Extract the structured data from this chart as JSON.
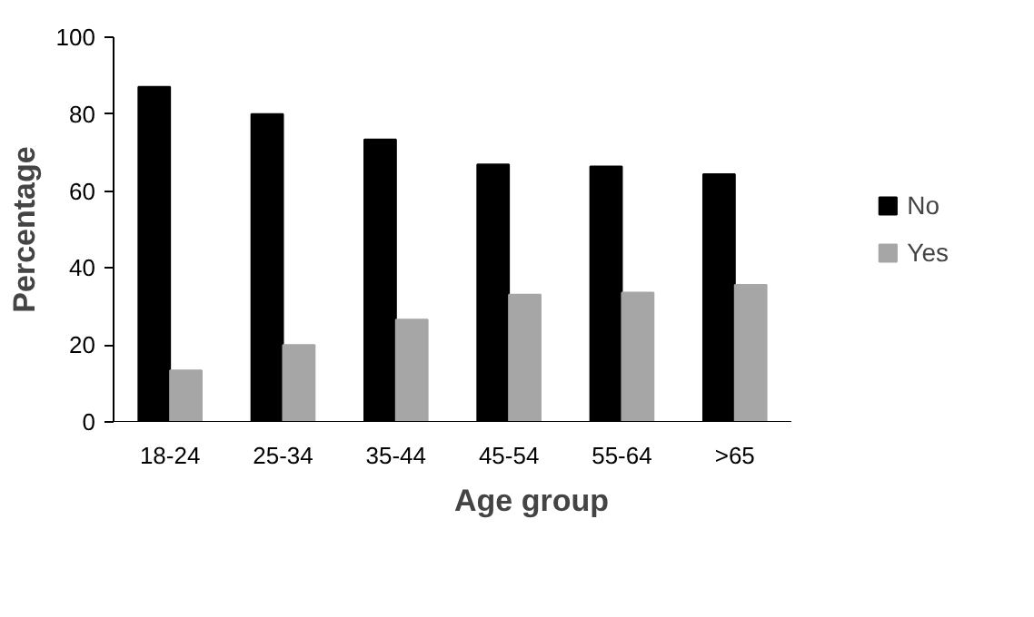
{
  "chart_data": {
    "type": "bar",
    "xlabel": "Age group",
    "ylabel": "Percentage",
    "categories": [
      "18-24",
      "25-34",
      "35-44",
      "45-54",
      "55-64",
      ">65"
    ],
    "series": [
      {
        "name": "No",
        "color": "#000000",
        "values": [
          87.1,
          80,
          73.4,
          66.9,
          66.4,
          64.4
        ]
      },
      {
        "name": "Yes",
        "color": "#a6a6a6",
        "values": [
          13.4,
          20,
          26.6,
          33.1,
          33.6,
          35.6
        ]
      }
    ],
    "ylim": [
      0,
      100
    ],
    "yticks": [
      0,
      20,
      40,
      60,
      80,
      100
    ],
    "legend": "right"
  }
}
